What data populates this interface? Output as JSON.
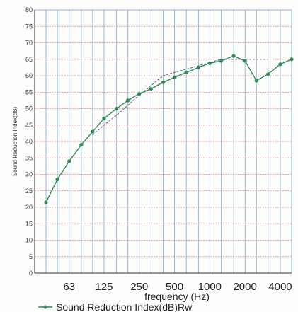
{
  "chart_data": {
    "type": "line",
    "xlabel": "frequency (Hz)",
    "ylabel": "Sound Reduction Index(dB)",
    "ylim": [
      0,
      80
    ],
    "yticks": [
      0,
      5,
      10,
      15,
      20,
      25,
      30,
      35,
      40,
      45,
      50,
      55,
      60,
      65,
      70,
      75,
      80
    ],
    "x_tick_labels": [
      "63",
      "125",
      "250",
      "500",
      "1000",
      "2000",
      "4000"
    ],
    "x_scale": "log-third-octave",
    "grid": true,
    "legend_position": "bottom-left",
    "series": [
      {
        "name": "Sound Reduction Index(dB)Rw",
        "color": "#2e8b57",
        "x": [
          40,
          50,
          63,
          80,
          100,
          125,
          160,
          200,
          250,
          315,
          400,
          500,
          630,
          800,
          1000,
          1250,
          1600,
          2000,
          2500,
          3150,
          4000,
          5000
        ],
        "values": [
          21.5,
          28.5,
          34,
          39,
          43,
          47,
          50,
          52.5,
          54.5,
          56,
          58,
          59.5,
          61,
          62.5,
          63.8,
          64.5,
          66,
          64.5,
          58.5,
          60.5,
          63.5,
          65
        ]
      },
      {
        "kind": "reference",
        "color": "#5b4b8a",
        "style": "dashed",
        "x": [
          100,
          125,
          160,
          200,
          250,
          315,
          400,
          500,
          630,
          800,
          1000,
          1250,
          1600,
          2000,
          2500,
          3150
        ],
        "values": [
          42,
          45,
          48,
          51,
          54,
          57,
          60,
          61,
          62,
          63,
          64,
          65,
          65,
          65,
          65,
          65
        ]
      }
    ]
  }
}
